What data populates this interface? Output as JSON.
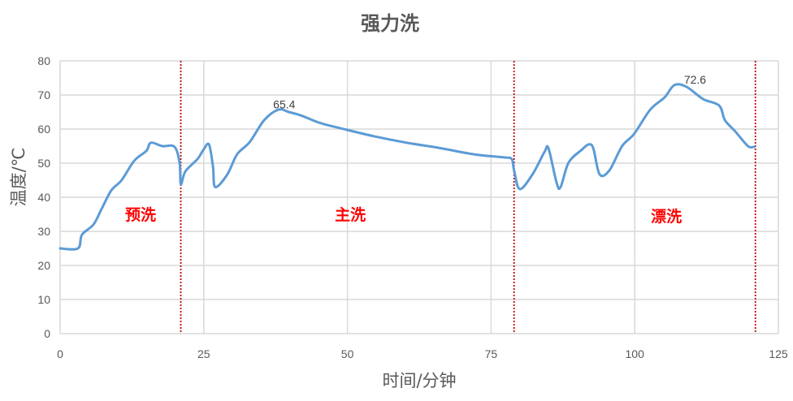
{
  "chart_data": {
    "type": "line",
    "title": "强力洗",
    "xlabel": "时间/分钟",
    "ylabel": "温度/℃",
    "xlim": [
      0,
      125
    ],
    "ylim": [
      0,
      80
    ],
    "xticks": [
      0,
      25,
      50,
      75,
      100,
      125
    ],
    "yticks": [
      0,
      10,
      20,
      30,
      40,
      50,
      60,
      70,
      80
    ],
    "grid": true,
    "line_color": "#5b9bd5",
    "series": [
      {
        "x": [
          0,
          3.1,
          3.8,
          5.8,
          7.2,
          8.9,
          10.7,
          12.9,
          15,
          15.8,
          17.8,
          19.9,
          20.8,
          21,
          21.8,
          23.9,
          24.9,
          25.9,
          26.6,
          27,
          29.1,
          30.8,
          33,
          35.5,
          38,
          39.8,
          41.9,
          45.4,
          48.9,
          54.6,
          60.3,
          65.9,
          72,
          77.2,
          78.6,
          79,
          80,
          82.2,
          84.3,
          85,
          86.4,
          87.1,
          88.5,
          90.7,
          92,
          92.8,
          93.9,
          95.6,
          97.8,
          99.9,
          102.7,
          105.2,
          106.9,
          109,
          111.9,
          114.7,
          115.7,
          117.5,
          119.7,
          120.8
        ],
        "y": [
          25,
          25,
          29,
          32,
          36.5,
          42,
          45,
          50.7,
          53.6,
          56,
          55,
          54.8,
          50,
          43.8,
          47.6,
          51.2,
          53.8,
          55.5,
          49,
          43,
          46.7,
          52.6,
          56.2,
          62.6,
          65.7,
          65,
          64,
          61.7,
          60.2,
          57.9,
          56,
          54.5,
          52.6,
          51.7,
          51.2,
          47.9,
          42.4,
          46.7,
          53.3,
          54.3,
          44.3,
          43,
          50.2,
          53.8,
          55.5,
          54.3,
          46.7,
          47.9,
          55,
          58.6,
          65.7,
          69.3,
          72.9,
          72.4,
          68.8,
          66.9,
          62.6,
          59.3,
          55,
          54.8
        ]
      }
    ],
    "phase_dividers": [
      21,
      79,
      121
    ],
    "divider_color": "#c00000",
    "annotations": [
      {
        "text": "预洗",
        "x": 14,
        "y": 35,
        "color": "#ff0000"
      },
      {
        "text": "主洗",
        "x": 50.5,
        "y": 35,
        "color": "#ff0000"
      },
      {
        "text": "漂洗",
        "x": 105.5,
        "y": 34.5,
        "color": "#ff0000"
      }
    ],
    "data_labels": [
      {
        "text": "65.4",
        "x": 39,
        "y": 65.4
      },
      {
        "text": "72.6",
        "x": 110.5,
        "y": 72.6
      }
    ]
  }
}
